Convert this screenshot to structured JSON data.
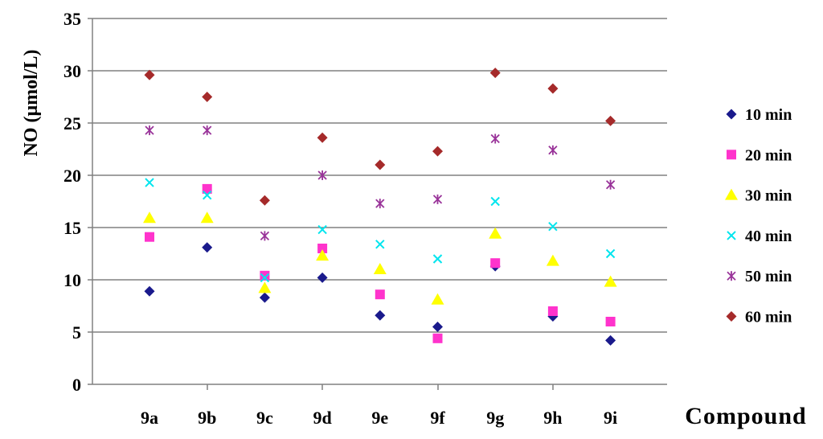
{
  "chart_data": {
    "type": "scatter",
    "title": "",
    "xlabel": "Compound",
    "ylabel": "NO (μmol/L)",
    "ylim": [
      0,
      35
    ],
    "yticks": [
      "0",
      "5",
      "10",
      "15",
      "20",
      "25",
      "30",
      "35"
    ],
    "grid": "horizontal",
    "legend_position": "right",
    "categories": [
      "9a",
      "9b",
      "9c",
      "9d",
      "9e",
      "9f",
      "9g",
      "9h",
      "9i"
    ],
    "series": [
      {
        "name": "10 min",
        "color": "#1a1a8c",
        "marker": "diamond",
        "values": [
          8.9,
          13.1,
          8.3,
          10.2,
          6.6,
          5.5,
          11.3,
          6.5,
          4.2
        ]
      },
      {
        "name": "20 min",
        "color": "#ff33cc",
        "marker": "square",
        "values": [
          14.1,
          18.7,
          10.4,
          13.0,
          8.6,
          4.4,
          11.6,
          7.0,
          6.0
        ]
      },
      {
        "name": "30 min",
        "color": "#ffff00",
        "marker": "triangle",
        "values": [
          15.9,
          15.9,
          9.2,
          12.3,
          11.0,
          8.1,
          14.4,
          11.8,
          9.8
        ]
      },
      {
        "name": "40 min",
        "color": "#00e5ee",
        "marker": "x",
        "values": [
          19.3,
          18.1,
          10.2,
          14.8,
          13.4,
          12.0,
          17.5,
          15.1,
          12.5
        ]
      },
      {
        "name": "50 min",
        "color": "#993399",
        "marker": "asterisk",
        "values": [
          24.3,
          24.3,
          14.2,
          20.0,
          17.3,
          17.7,
          23.5,
          22.4,
          19.1
        ]
      },
      {
        "name": "60 min",
        "color": "#a52a2a",
        "marker": "diamond",
        "values": [
          29.6,
          27.5,
          17.6,
          23.6,
          21.0,
          22.3,
          29.8,
          28.3,
          25.2
        ]
      }
    ]
  }
}
